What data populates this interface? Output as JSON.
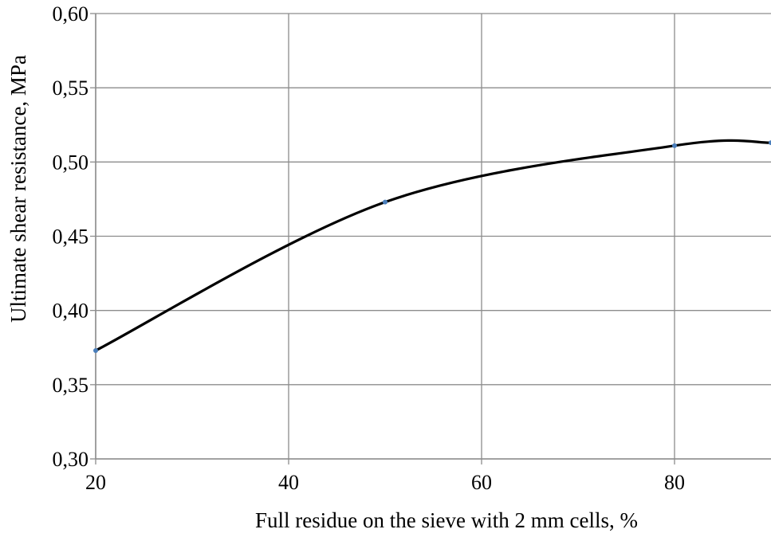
{
  "chart_data": {
    "type": "line",
    "title": "",
    "xlabel": "Full residue on the sieve with 2 mm cells, %",
    "ylabel": "Ultimate shear resistance, MPa",
    "xlim": [
      20,
      90
    ],
    "ylim": [
      0.3,
      0.6
    ],
    "x_ticks": [
      20,
      40,
      60,
      80
    ],
    "x_tick_labels": [
      "20",
      "40",
      "60",
      "80"
    ],
    "y_ticks": [
      0.3,
      0.35,
      0.4,
      0.45,
      0.5,
      0.55,
      0.6
    ],
    "y_tick_labels": [
      "0,30",
      "0,35",
      "0,40",
      "0,45",
      "0,50",
      "0,55",
      "0,60"
    ],
    "grid": true,
    "legend": "none",
    "series": [
      {
        "color": "#000000",
        "marker_color": "#4a7ebb",
        "smooth": true,
        "x": [
          20,
          50,
          80,
          90
        ],
        "values": [
          0.373,
          0.473,
          0.511,
          0.513
        ]
      }
    ]
  }
}
